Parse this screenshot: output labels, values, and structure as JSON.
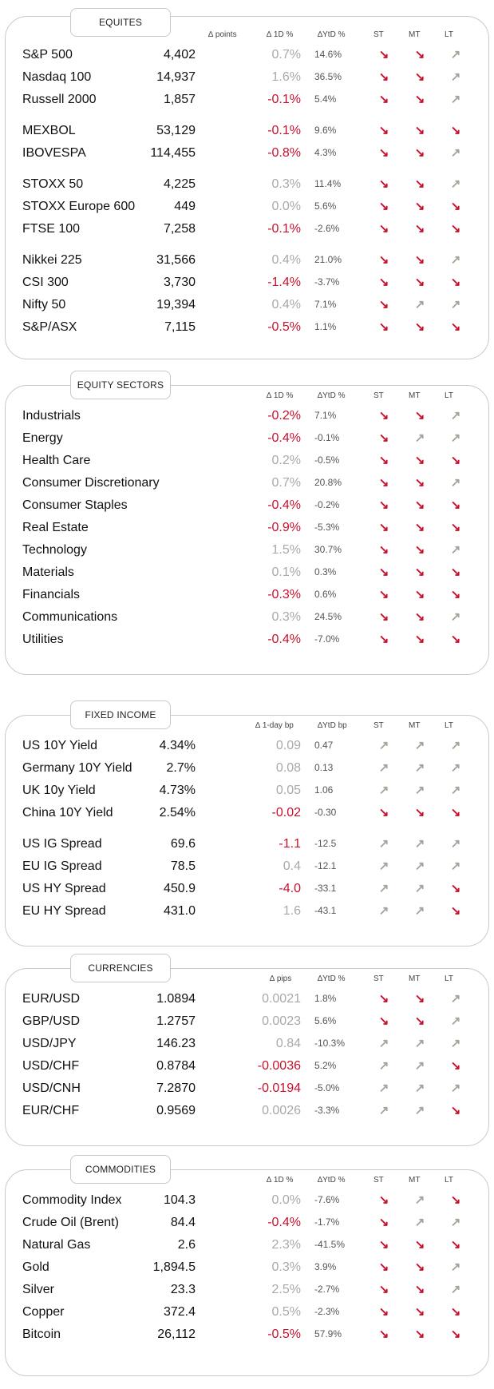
{
  "colors": {
    "positive": "#a9a9a9",
    "negative": "#c8102e",
    "arrow_up": "#a6a39a",
    "arrow_down": "#c8102e"
  },
  "arrows": {
    "up": "↗",
    "down": "↘"
  },
  "sections": [
    {
      "title": "EQUITES",
      "headers": {
        "level": "",
        "change": "∆ 1D %",
        "points": "∆ points",
        "ytd": "∆YtD %",
        "st": "ST",
        "mt": "MT",
        "lt": "LT"
      },
      "rows": [
        {
          "name": "S&P 500",
          "level": "4,402",
          "change": "0.7%",
          "sign": "pos",
          "ytd": "14.6%",
          "st": "down",
          "mt": "down",
          "lt": "up"
        },
        {
          "name": "Nasdaq 100",
          "level": "14,937",
          "change": "1.6%",
          "sign": "pos",
          "ytd": "36.5%",
          "st": "down",
          "mt": "down",
          "lt": "up"
        },
        {
          "name": "Russell 2000",
          "level": "1,857",
          "change": "-0.1%",
          "sign": "neg",
          "ytd": "5.4%",
          "st": "down",
          "mt": "down",
          "lt": "up"
        },
        {
          "name": "MEXBOL",
          "level": "53,129",
          "change": "-0.1%",
          "sign": "neg",
          "ytd": "9.6%",
          "st": "down",
          "mt": "down",
          "lt": "down"
        },
        {
          "name": "IBOVESPA",
          "level": "114,455",
          "change": "-0.8%",
          "sign": "neg",
          "ytd": "4.3%",
          "st": "down",
          "mt": "down",
          "lt": "up"
        },
        {
          "name": "STOXX 50",
          "level": "4,225",
          "change": "0.3%",
          "sign": "pos",
          "ytd": "11.4%",
          "st": "down",
          "mt": "down",
          "lt": "up"
        },
        {
          "name": "STOXX Europe 600",
          "level": "449",
          "change": "0.0%",
          "sign": "pos",
          "ytd": "5.6%",
          "st": "down",
          "mt": "down",
          "lt": "down"
        },
        {
          "name": "FTSE 100",
          "level": "7,258",
          "change": "-0.1%",
          "sign": "neg",
          "ytd": "-2.6%",
          "st": "down",
          "mt": "down",
          "lt": "down"
        },
        {
          "name": "Nikkei 225",
          "level": "31,566",
          "change": "0.4%",
          "sign": "pos",
          "ytd": "21.0%",
          "st": "down",
          "mt": "down",
          "lt": "up"
        },
        {
          "name": "CSI 300",
          "level": "3,730",
          "change": "-1.4%",
          "sign": "neg",
          "ytd": "-3.7%",
          "st": "down",
          "mt": "down",
          "lt": "down"
        },
        {
          "name": "Nifty  50",
          "level": "19,394",
          "change": "0.4%",
          "sign": "pos",
          "ytd": "7.1%",
          "st": "down",
          "mt": "up",
          "lt": "up"
        },
        {
          "name": "S&P/ASX",
          "level": "7,115",
          "change": "-0.5%",
          "sign": "neg",
          "ytd": "1.1%",
          "st": "down",
          "mt": "down",
          "lt": "down"
        }
      ]
    },
    {
      "title": "EQUITY  SECTORS",
      "headers": {
        "change": "∆ 1D %",
        "ytd": "∆YtD %",
        "st": "ST",
        "mt": "MT",
        "lt": "LT"
      },
      "rows": [
        {
          "name": "Industrials",
          "level": "",
          "change": "-0.2%",
          "sign": "neg",
          "ytd": "7.1%",
          "st": "down",
          "mt": "down",
          "lt": "up"
        },
        {
          "name": "Energy",
          "level": "",
          "change": "-0.4%",
          "sign": "neg",
          "ytd": "-0.1%",
          "st": "down",
          "mt": "up",
          "lt": "up"
        },
        {
          "name": "Health Care",
          "level": "",
          "change": "0.2%",
          "sign": "pos",
          "ytd": "-0.5%",
          "st": "down",
          "mt": "down",
          "lt": "down"
        },
        {
          "name": "Consumer Discretionary",
          "level": "",
          "change": "0.7%",
          "sign": "pos",
          "ytd": "20.8%",
          "st": "down",
          "mt": "down",
          "lt": "up"
        },
        {
          "name": "Consumer Staples",
          "level": "",
          "change": "-0.4%",
          "sign": "neg",
          "ytd": "-0.2%",
          "st": "down",
          "mt": "down",
          "lt": "down"
        },
        {
          "name": "Real Estate",
          "level": "",
          "change": "-0.9%",
          "sign": "neg",
          "ytd": "-5.3%",
          "st": "down",
          "mt": "down",
          "lt": "down"
        },
        {
          "name": "Technology",
          "level": "",
          "change": "1.5%",
          "sign": "pos",
          "ytd": "30.7%",
          "st": "down",
          "mt": "down",
          "lt": "up"
        },
        {
          "name": "Materials",
          "level": "",
          "change": "0.1%",
          "sign": "pos",
          "ytd": "0.3%",
          "st": "down",
          "mt": "down",
          "lt": "down"
        },
        {
          "name": "Financials",
          "level": "",
          "change": "-0.3%",
          "sign": "neg",
          "ytd": "0.6%",
          "st": "down",
          "mt": "down",
          "lt": "down"
        },
        {
          "name": "Communications",
          "level": "",
          "change": "0.3%",
          "sign": "pos",
          "ytd": "24.5%",
          "st": "down",
          "mt": "down",
          "lt": "up"
        },
        {
          "name": "Utilities",
          "level": "",
          "change": "-0.4%",
          "sign": "neg",
          "ytd": "-7.0%",
          "st": "down",
          "mt": "down",
          "lt": "down"
        }
      ]
    },
    {
      "title": "FIXED  INCOME",
      "headers": {
        "change": "∆ 1-day bp",
        "ytd": "∆YtD bp",
        "st": "ST",
        "mt": "MT",
        "lt": "LT"
      },
      "rows": [
        {
          "name": "US 10Y Yield",
          "level": "4.34%",
          "change": "0.09",
          "sign": "pos",
          "ytd": "0.47",
          "st": "up",
          "mt": "up",
          "lt": "up"
        },
        {
          "name": "Germany 10Y Yield",
          "level": "2.7%",
          "change": "0.08",
          "sign": "pos",
          "ytd": "0.13",
          "st": "up",
          "mt": "up",
          "lt": "up"
        },
        {
          "name": "UK 10y Yield",
          "level": "4.73%",
          "change": "0.05",
          "sign": "pos",
          "ytd": "1.06",
          "st": "up",
          "mt": "up",
          "lt": "up"
        },
        {
          "name": "China 10Y Yield",
          "level": "2.54%",
          "change": "-0.02",
          "sign": "neg",
          "ytd": "-0.30",
          "st": "down",
          "mt": "down",
          "lt": "down"
        },
        {
          "name": "US IG Spread",
          "level": "69.6",
          "change": "-1.1",
          "sign": "neg",
          "ytd": "-12.5",
          "st": "up",
          "mt": "up",
          "lt": "up"
        },
        {
          "name": "EU IG Spread",
          "level": "78.5",
          "change": "0.4",
          "sign": "pos",
          "ytd": "-12.1",
          "st": "up",
          "mt": "up",
          "lt": "up"
        },
        {
          "name": "US HY Spread",
          "level": "450.9",
          "change": "-4.0",
          "sign": "neg",
          "ytd": "-33.1",
          "st": "up",
          "mt": "up",
          "lt": "down"
        },
        {
          "name": "EU HY Spread",
          "level": "431.0",
          "change": "1.6",
          "sign": "pos",
          "ytd": "-43.1",
          "st": "up",
          "mt": "up",
          "lt": "down"
        }
      ]
    },
    {
      "title": "CURRENCIES",
      "headers": {
        "change": "∆ pips",
        "ytd": "∆YtD %",
        "st": "ST",
        "mt": "MT",
        "lt": "LT"
      },
      "rows": [
        {
          "name": "EUR/USD",
          "level": "1.0894",
          "change": "0.0021",
          "sign": "pos",
          "ytd": "1.8%",
          "st": "down",
          "mt": "down",
          "lt": "up"
        },
        {
          "name": "GBP/USD",
          "level": "1.2757",
          "change": "0.0023",
          "sign": "pos",
          "ytd": "5.6%",
          "st": "down",
          "mt": "down",
          "lt": "up"
        },
        {
          "name": "USD/JPY",
          "level": "146.23",
          "change": "0.84",
          "sign": "pos",
          "ytd": "-10.3%",
          "st": "up",
          "mt": "up",
          "lt": "up"
        },
        {
          "name": "USD/CHF",
          "level": "0.8784",
          "change": "-0.0036",
          "sign": "neg",
          "ytd": "5.2%",
          "st": "up",
          "mt": "up",
          "lt": "down"
        },
        {
          "name": "USD/CNH",
          "level": "7.2870",
          "change": "-0.0194",
          "sign": "neg",
          "ytd": "-5.0%",
          "st": "up",
          "mt": "up",
          "lt": "up"
        },
        {
          "name": "EUR/CHF",
          "level": "0.9569",
          "change": "0.0026",
          "sign": "pos",
          "ytd": "-3.3%",
          "st": "up",
          "mt": "up",
          "lt": "down"
        }
      ]
    },
    {
      "title": "COMMODITIES",
      "headers": {
        "change": "∆ 1D %",
        "ytd": "∆YtD %",
        "st": "ST",
        "mt": "MT",
        "lt": "LT"
      },
      "rows": [
        {
          "name": "Commodity Index",
          "level": "104.3",
          "change": "0.0%",
          "sign": "pos",
          "ytd": "-7.6%",
          "st": "down",
          "mt": "up",
          "lt": "down"
        },
        {
          "name": "Crude Oil (Brent)",
          "level": "84.4",
          "change": "-0.4%",
          "sign": "neg",
          "ytd": "-1.7%",
          "st": "down",
          "mt": "up",
          "lt": "up"
        },
        {
          "name": "Natural Gas",
          "level": "2.6",
          "change": "2.3%",
          "sign": "pos",
          "ytd": "-41.5%",
          "st": "down",
          "mt": "down",
          "lt": "down"
        },
        {
          "name": "Gold",
          "level": "1,894.5",
          "change": "0.3%",
          "sign": "pos",
          "ytd": "3.9%",
          "st": "down",
          "mt": "down",
          "lt": "up"
        },
        {
          "name": "Silver",
          "level": "23.3",
          "change": "2.5%",
          "sign": "pos",
          "ytd": "-2.7%",
          "st": "down",
          "mt": "down",
          "lt": "up"
        },
        {
          "name": "Copper",
          "level": "372.4",
          "change": "0.5%",
          "sign": "pos",
          "ytd": "-2.3%",
          "st": "down",
          "mt": "down",
          "lt": "down"
        },
        {
          "name": "Bitcoin",
          "level": "26,112",
          "change": "-0.5%",
          "sign": "neg",
          "ytd": "57.9%",
          "st": "down",
          "mt": "down",
          "lt": "down"
        }
      ]
    }
  ]
}
